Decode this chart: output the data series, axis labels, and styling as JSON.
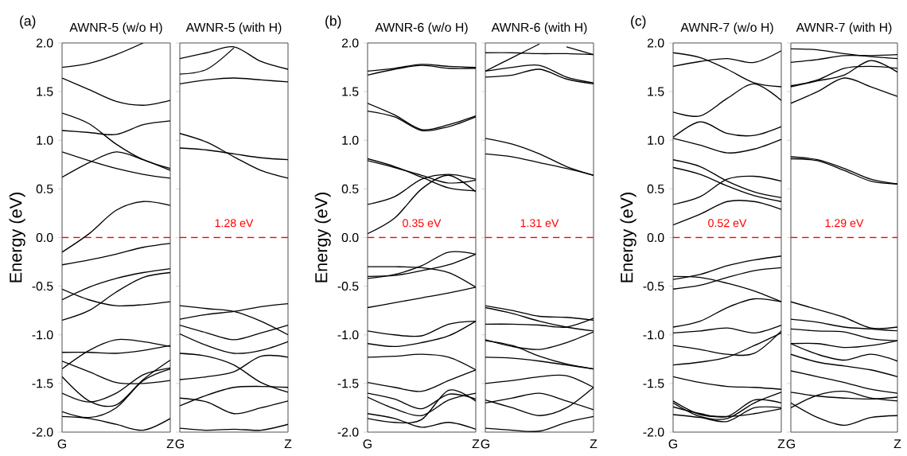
{
  "chart_data": [
    {
      "type": "line",
      "title": "AWNR-5 (w/o H)",
      "ylabel": "Energy (eV)",
      "annotations": [
        "(a)"
      ],
      "ylim": [
        -2,
        2
      ],
      "categories": [
        "G",
        null,
        null,
        null,
        "Z"
      ],
      "yticks": [
        {
          "value": -2,
          "label": "-2.0"
        },
        {
          "value": -1.5,
          "label": "-1.5"
        },
        {
          "value": -1,
          "label": "-1.0"
        },
        {
          "value": -0.5,
          "label": "-0.5"
        },
        {
          "value": 0,
          "label": "0.0"
        },
        {
          "value": 0.5,
          "label": "0.5"
        },
        {
          "value": 1,
          "label": "1.0"
        },
        {
          "value": 1.5,
          "label": "1.5"
        },
        {
          "value": 2,
          "label": "2.0"
        }
      ],
      "ref_lines": [
        {
          "axis": "y",
          "value": 0,
          "color": "#ff0000",
          "line_style": "dashed"
        }
      ],
      "series": [
        {
          "values": [
            1.75,
            1.79,
            1.88,
            2.0,
            null
          ],
          "color": "#000000"
        },
        {
          "values": [
            1.64,
            1.52,
            1.4,
            1.36,
            1.41
          ],
          "color": "#000000"
        },
        {
          "values": [
            1.28,
            1.17,
            0.96,
            0.8,
            0.71
          ],
          "color": "#000000"
        },
        {
          "values": [
            1.1,
            1.08,
            1.06,
            1.16,
            1.2
          ],
          "color": "#000000"
        },
        {
          "values": [
            0.88,
            0.79,
            0.71,
            0.65,
            0.61
          ],
          "color": "#000000"
        },
        {
          "values": [
            0.62,
            0.77,
            0.88,
            0.8,
            0.69
          ],
          "color": "#000000"
        },
        {
          "values": [
            -0.15,
            0.04,
            0.28,
            0.37,
            0.33
          ],
          "color": "#000000"
        },
        {
          "values": [
            -0.28,
            -0.23,
            -0.17,
            -0.1,
            -0.06
          ],
          "color": "#000000"
        },
        {
          "values": [
            -0.53,
            -0.64,
            -0.7,
            -0.69,
            -0.66
          ],
          "color": "#000000"
        },
        {
          "values": [
            -0.64,
            -0.51,
            -0.42,
            -0.36,
            -0.32
          ],
          "color": "#000000"
        },
        {
          "values": [
            -0.85,
            -0.75,
            -0.56,
            -0.41,
            -0.36
          ],
          "color": "#000000"
        },
        {
          "values": [
            -1.18,
            -1.18,
            -1.19,
            -1.16,
            -1.11
          ],
          "color": "#000000"
        },
        {
          "values": [
            -1.35,
            -1.16,
            -1.05,
            -1.07,
            -1.12
          ],
          "color": "#000000"
        },
        {
          "values": [
            -1.27,
            -1.38,
            -1.49,
            -1.5,
            -1.47
          ],
          "color": "#000000"
        },
        {
          "values": [
            -1.43,
            -1.68,
            -1.72,
            -1.46,
            -1.26
          ],
          "color": "#000000"
        },
        {
          "values": [
            -1.6,
            -1.69,
            -1.6,
            -1.41,
            -1.34
          ],
          "color": "#000000"
        },
        {
          "values": [
            -1.79,
            -1.85,
            -1.75,
            -1.47,
            -1.35
          ],
          "color": "#000000"
        },
        {
          "values": [
            -1.84,
            -1.86,
            -1.92,
            -1.98,
            -1.86
          ],
          "color": "#000000"
        }
      ]
    },
    {
      "type": "line",
      "title": "AWNR-5 (with H)",
      "annotations": [
        "1.28 eV"
      ],
      "ylim": [
        -2,
        2
      ],
      "tick_labels": "x",
      "categories": [
        "G",
        null,
        null,
        null,
        "Z"
      ],
      "yticks": [
        {
          "value": -2,
          "label": null
        },
        {
          "value": -1.5,
          "label": null
        },
        {
          "value": -1,
          "label": null
        },
        {
          "value": -0.5,
          "label": null
        },
        {
          "value": 0,
          "label": null
        },
        {
          "value": 0.5,
          "label": null
        },
        {
          "value": 1,
          "label": null
        },
        {
          "value": 1.5,
          "label": null
        },
        {
          "value": 2,
          "label": null
        }
      ],
      "ref_lines": [
        {
          "axis": "y",
          "value": 0,
          "color": "#ff0000",
          "line_style": "dashed"
        }
      ],
      "series": [
        {
          "values": [
            1.84,
            1.9,
            1.96,
            1.81,
            1.73
          ],
          "color": "#000000"
        },
        {
          "values": [
            1.68,
            1.73,
            1.95,
            null,
            null
          ],
          "color": "#000000"
        },
        {
          "values": [
            1.58,
            1.62,
            1.64,
            1.62,
            1.6
          ],
          "color": "#000000"
        },
        {
          "values": [
            1.07,
            0.98,
            0.83,
            0.69,
            0.61
          ],
          "color": "#000000"
        },
        {
          "values": [
            0.92,
            0.9,
            0.86,
            0.82,
            0.8
          ],
          "color": "#000000"
        },
        {
          "values": [
            -0.7,
            -0.73,
            -0.76,
            -0.86,
            -1.0
          ],
          "color": "#000000"
        },
        {
          "values": [
            -0.84,
            -0.79,
            -0.76,
            -0.71,
            -0.68
          ],
          "color": "#000000"
        },
        {
          "values": [
            -0.9,
            -0.98,
            -1.05,
            -0.98,
            -0.9
          ],
          "color": "#000000"
        },
        {
          "values": [
            -0.99,
            -1.11,
            -1.19,
            -1.16,
            -1.07
          ],
          "color": "#000000"
        },
        {
          "values": [
            -1.19,
            -1.22,
            -1.31,
            -1.49,
            -1.59
          ],
          "color": "#000000"
        },
        {
          "values": [
            -1.46,
            -1.43,
            -1.38,
            -1.22,
            -1.23
          ],
          "color": "#000000"
        },
        {
          "values": [
            -1.73,
            -1.62,
            -1.54,
            -1.53,
            -1.54
          ],
          "color": "#000000"
        },
        {
          "values": [
            -1.65,
            -1.69,
            -1.81,
            -1.75,
            -1.68
          ],
          "color": "#000000"
        },
        {
          "values": [
            -1.96,
            -1.98,
            -1.97,
            -1.98,
            -1.92
          ],
          "color": "#000000"
        }
      ]
    },
    {
      "type": "line",
      "title": "AWNR-6 (w/o H)",
      "ylabel": "Energy (eV)",
      "annotations": [
        "(b)",
        "0.35 eV"
      ],
      "ylim": [
        -2,
        2
      ],
      "categories": [
        "G",
        null,
        null,
        null,
        "Z"
      ],
      "yticks": [
        {
          "value": -2,
          "label": "-2.0"
        },
        {
          "value": -1.5,
          "label": "-1.5"
        },
        {
          "value": -1,
          "label": "-1.0"
        },
        {
          "value": -0.5,
          "label": "-0.5"
        },
        {
          "value": 0,
          "label": "0.0"
        },
        {
          "value": 0.5,
          "label": "0.5"
        },
        {
          "value": 1,
          "label": "1.0"
        },
        {
          "value": 1.5,
          "label": "1.5"
        },
        {
          "value": 2,
          "label": "2.0"
        }
      ],
      "ref_lines": [
        {
          "axis": "y",
          "value": 0,
          "color": "#ff0000",
          "line_style": "dashed"
        }
      ],
      "series": [
        {
          "values": [
            1.71,
            1.74,
            1.78,
            1.76,
            1.75
          ],
          "color": "#000000"
        },
        {
          "values": [
            1.67,
            1.73,
            1.77,
            1.74,
            1.74
          ],
          "color": "#000000"
        },
        {
          "values": [
            1.38,
            1.26,
            1.11,
            1.16,
            1.25
          ],
          "color": "#000000"
        },
        {
          "values": [
            1.3,
            1.24,
            1.1,
            1.14,
            1.24
          ],
          "color": "#000000"
        },
        {
          "values": [
            0.81,
            0.73,
            0.62,
            0.51,
            0.48
          ],
          "color": "#000000"
        },
        {
          "values": [
            0.79,
            0.72,
            0.64,
            0.56,
            0.59
          ],
          "color": "#000000"
        },
        {
          "values": [
            0.34,
            0.42,
            0.6,
            0.65,
            0.6
          ],
          "color": "#000000"
        },
        {
          "values": [
            0.04,
            0.2,
            0.5,
            0.64,
            0.47
          ],
          "color": "#000000"
        },
        {
          "values": [
            -0.3,
            -0.3,
            -0.31,
            -0.36,
            -0.51
          ],
          "color": "#000000"
        },
        {
          "values": [
            -0.4,
            -0.39,
            -0.34,
            -0.28,
            -0.17
          ],
          "color": "#000000"
        },
        {
          "values": [
            -0.42,
            -0.38,
            -0.29,
            -0.15,
            -0.17
          ],
          "color": "#000000"
        },
        {
          "values": [
            -0.72,
            -0.67,
            -0.62,
            -0.57,
            -0.51
          ],
          "color": "#000000"
        },
        {
          "values": [
            -0.96,
            -1.0,
            -1.01,
            -0.89,
            -0.86
          ],
          "color": "#000000"
        },
        {
          "values": [
            -1.09,
            -1.12,
            -1.08,
            -1.01,
            -0.86
          ],
          "color": "#000000"
        },
        {
          "values": [
            -1.23,
            -1.22,
            -1.2,
            -1.23,
            -1.36
          ],
          "color": "#000000"
        },
        {
          "values": [
            -1.49,
            -1.54,
            -1.58,
            -1.47,
            -1.36
          ],
          "color": "#000000"
        },
        {
          "values": [
            -1.6,
            -1.66,
            -1.76,
            -1.61,
            -1.66
          ],
          "color": "#000000"
        },
        {
          "values": [
            -1.64,
            -1.76,
            -1.83,
            -1.67,
            -1.6
          ],
          "color": "#000000"
        },
        {
          "values": [
            -1.81,
            -1.86,
            -1.95,
            -1.9,
            -1.97
          ],
          "color": "#000000"
        },
        {
          "values": [
            -1.86,
            -1.9,
            -1.87,
            -1.57,
            -1.68
          ],
          "color": "#000000"
        }
      ]
    },
    {
      "type": "line",
      "title": "AWNR-6 (with H)",
      "annotations": [
        "1.31 eV"
      ],
      "ylim": [
        -2,
        2
      ],
      "tick_labels": "x",
      "categories": [
        "G",
        null,
        null,
        null,
        "Z"
      ],
      "yticks": [
        {
          "value": -2,
          "label": null
        },
        {
          "value": -1.5,
          "label": null
        },
        {
          "value": -1,
          "label": null
        },
        {
          "value": -0.5,
          "label": null
        },
        {
          "value": 0,
          "label": null
        },
        {
          "value": 0.5,
          "label": null
        },
        {
          "value": 1,
          "label": null
        },
        {
          "value": 1.5,
          "label": null
        },
        {
          "value": 2,
          "label": null
        }
      ],
      "ref_lines": [
        {
          "axis": "y",
          "value": 0,
          "color": "#ff0000",
          "line_style": "dashed"
        }
      ],
      "series": [
        {
          "values": [
            1.9,
            1.9,
            1.89,
            1.89,
            1.88
          ],
          "color": "#000000"
        },
        {
          "values": [
            1.71,
            1.85,
            1.99,
            null,
            null
          ],
          "color": "#000000"
        },
        {
          "values": [
            1.71,
            1.75,
            1.77,
            1.65,
            1.59
          ],
          "color": "#000000"
        },
        {
          "values": [
            1.65,
            1.67,
            1.73,
            1.63,
            1.58
          ],
          "color": "#000000"
        },
        {
          "values": [
            null,
            null,
            null,
            1.96,
            1.88
          ],
          "color": "#000000"
        },
        {
          "values": [
            1.02,
            0.96,
            0.86,
            0.73,
            0.64
          ],
          "color": "#000000"
        },
        {
          "values": [
            0.86,
            0.83,
            0.77,
            0.71,
            0.64
          ],
          "color": "#000000"
        },
        {
          "values": [
            -0.7,
            -0.75,
            -0.81,
            -0.82,
            -0.85
          ],
          "color": "#000000"
        },
        {
          "values": [
            -0.72,
            -0.78,
            -0.86,
            -0.92,
            -0.96
          ],
          "color": "#000000"
        },
        {
          "values": [
            -0.89,
            -0.89,
            -0.9,
            -0.92,
            -0.83
          ],
          "color": "#000000"
        },
        {
          "values": [
            -1.05,
            -1.12,
            -1.15,
            -1.08,
            -0.97
          ],
          "color": "#000000"
        },
        {
          "values": [
            -1.06,
            -1.11,
            -1.22,
            -1.3,
            -1.35
          ],
          "color": "#000000"
        },
        {
          "values": [
            -1.23,
            -1.24,
            -1.27,
            -1.31,
            -1.35
          ],
          "color": "#000000"
        },
        {
          "values": [
            -1.5,
            -1.47,
            -1.43,
            -1.42,
            -1.54
          ],
          "color": "#000000"
        },
        {
          "values": [
            -1.7,
            -1.65,
            -1.6,
            -1.68,
            -1.77
          ],
          "color": "#000000"
        },
        {
          "values": [
            -1.67,
            -1.75,
            -1.83,
            -1.75,
            -1.54
          ],
          "color": "#000000"
        },
        {
          "values": [
            -1.96,
            -1.98,
            -1.99,
            -1.9,
            -1.84
          ],
          "color": "#000000"
        }
      ]
    },
    {
      "type": "line",
      "title": "AWNR-7 (w/o H)",
      "ylabel": "Energy (eV)",
      "annotations": [
        "(c)",
        "0.52 eV"
      ],
      "ylim": [
        -2,
        2
      ],
      "categories": [
        "G",
        null,
        null,
        null,
        "Z"
      ],
      "yticks": [
        {
          "value": -2,
          "label": "-2.0"
        },
        {
          "value": -1.5,
          "label": "-1.5"
        },
        {
          "value": -1,
          "label": "-1.0"
        },
        {
          "value": -0.5,
          "label": "-0.5"
        },
        {
          "value": 0,
          "label": "0.0"
        },
        {
          "value": 0.5,
          "label": "0.5"
        },
        {
          "value": 1,
          "label": "1.0"
        },
        {
          "value": 1.5,
          "label": "1.5"
        },
        {
          "value": 2,
          "label": "2.0"
        }
      ],
      "ref_lines": [
        {
          "axis": "y",
          "value": 0,
          "color": "#ff0000",
          "line_style": "dashed"
        }
      ],
      "series": [
        {
          "values": [
            1.9,
            1.85,
            1.73,
            1.59,
            1.55
          ],
          "color": "#000000"
        },
        {
          "values": [
            1.76,
            1.81,
            1.84,
            1.8,
            1.92
          ],
          "color": "#000000"
        },
        {
          "values": [
            1.29,
            1.25,
            1.43,
            1.58,
            1.41
          ],
          "color": "#000000"
        },
        {
          "values": [
            1.03,
            1.19,
            1.07,
            1.05,
            1.14
          ],
          "color": "#000000"
        },
        {
          "values": [
            1.02,
            0.95,
            0.87,
            0.91,
            1.01
          ],
          "color": "#000000"
        },
        {
          "values": [
            0.8,
            0.73,
            0.58,
            0.47,
            0.41
          ],
          "color": "#000000"
        },
        {
          "values": [
            0.72,
            0.65,
            0.53,
            0.43,
            0.37
          ],
          "color": "#000000"
        },
        {
          "values": [
            0.34,
            0.42,
            0.6,
            0.63,
            0.58
          ],
          "color": "#000000"
        },
        {
          "values": [
            0.13,
            0.24,
            0.37,
            0.37,
            0.29
          ],
          "color": "#000000"
        },
        {
          "values": [
            -0.4,
            -0.41,
            -0.47,
            -0.55,
            -0.66
          ],
          "color": "#000000"
        },
        {
          "values": [
            -0.43,
            -0.38,
            -0.29,
            -0.23,
            -0.19
          ],
          "color": "#000000"
        },
        {
          "values": [
            -0.53,
            -0.49,
            -0.41,
            -0.34,
            -0.31
          ],
          "color": "#000000"
        },
        {
          "values": [
            -0.92,
            -0.86,
            -0.72,
            -0.63,
            -0.66
          ],
          "color": "#000000"
        },
        {
          "values": [
            -0.98,
            -0.96,
            -0.93,
            -0.98,
            -0.9
          ],
          "color": "#000000"
        },
        {
          "values": [
            -1.11,
            -1.15,
            -1.2,
            -1.19,
            -0.96
          ],
          "color": "#000000"
        },
        {
          "values": [
            -1.31,
            -1.28,
            -1.23,
            -1.11,
            -0.98
          ],
          "color": "#000000"
        },
        {
          "values": [
            -1.43,
            -1.49,
            -1.53,
            -1.54,
            -1.56
          ],
          "color": "#000000"
        },
        {
          "values": [
            -1.68,
            -1.82,
            -1.84,
            -1.81,
            -1.76
          ],
          "color": "#000000"
        },
        {
          "values": [
            -1.7,
            -1.84,
            -1.86,
            -1.7,
            -1.59
          ],
          "color": "#000000"
        },
        {
          "values": [
            -1.74,
            -1.81,
            -1.84,
            -1.67,
            -1.7
          ],
          "color": "#000000"
        },
        {
          "values": [
            -1.82,
            -1.85,
            -1.89,
            -1.75,
            -1.75
          ],
          "color": "#000000"
        }
      ]
    },
    {
      "type": "line",
      "title": "AWNR-7 (with H)",
      "annotations": [
        "1.29 eV"
      ],
      "ylim": [
        -2,
        2
      ],
      "tick_labels": "x",
      "categories": [
        "G",
        null,
        null,
        null,
        "Z"
      ],
      "yticks": [
        {
          "value": -2,
          "label": null
        },
        {
          "value": -1.5,
          "label": null
        },
        {
          "value": -1,
          "label": null
        },
        {
          "value": -0.5,
          "label": null
        },
        {
          "value": 0,
          "label": null
        },
        {
          "value": 0.5,
          "label": null
        },
        {
          "value": 1,
          "label": null
        },
        {
          "value": 1.5,
          "label": null
        },
        {
          "value": 2,
          "label": null
        }
      ],
      "ref_lines": [
        {
          "axis": "y",
          "value": 0,
          "color": "#ff0000",
          "line_style": "dashed"
        }
      ],
      "series": [
        {
          "values": [
            1.94,
            1.93,
            1.89,
            1.86,
            1.84
          ],
          "color": "#000000"
        },
        {
          "values": [
            1.8,
            1.83,
            1.87,
            1.87,
            1.88
          ],
          "color": "#000000"
        },
        {
          "values": [
            1.55,
            1.61,
            1.67,
            1.82,
            1.7
          ],
          "color": "#000000"
        },
        {
          "values": [
            1.38,
            1.5,
            1.64,
            1.55,
            1.45
          ],
          "color": "#000000"
        },
        {
          "values": [
            1.56,
            1.62,
            1.74,
            1.76,
            1.74
          ],
          "color": "#000000"
        },
        {
          "values": [
            0.83,
            0.8,
            0.71,
            0.6,
            0.55
          ],
          "color": "#000000"
        },
        {
          "values": [
            0.81,
            0.79,
            0.69,
            0.58,
            0.55
          ],
          "color": "#000000"
        },
        {
          "values": [
            -0.66,
            -0.74,
            -0.82,
            -0.93,
            -0.92
          ],
          "color": "#000000"
        },
        {
          "values": [
            -0.84,
            -0.87,
            -0.92,
            -0.94,
            -0.96
          ],
          "color": "#000000"
        },
        {
          "values": [
            -0.94,
            -0.96,
            -0.97,
            -1.04,
            -1.06
          ],
          "color": "#000000"
        },
        {
          "values": [
            -1.09,
            -1.09,
            -1.13,
            -1.11,
            -1.06
          ],
          "color": "#000000"
        },
        {
          "values": [
            -1.09,
            -1.2,
            -1.26,
            -1.2,
            -1.27
          ],
          "color": "#000000"
        },
        {
          "values": [
            -1.2,
            -1.28,
            -1.32,
            -1.36,
            -1.43
          ],
          "color": "#000000"
        },
        {
          "values": [
            -1.37,
            -1.43,
            -1.49,
            -1.56,
            -1.6
          ],
          "color": "#000000"
        },
        {
          "values": [
            -1.59,
            -1.63,
            -1.65,
            -1.66,
            -1.64
          ],
          "color": "#000000"
        },
        {
          "values": [
            -1.75,
            -1.62,
            -1.58,
            -1.65,
            -1.68
          ],
          "color": "#000000"
        },
        {
          "values": [
            -1.7,
            -1.85,
            -1.93,
            -1.85,
            -1.83
          ],
          "color": "#000000"
        }
      ]
    }
  ]
}
